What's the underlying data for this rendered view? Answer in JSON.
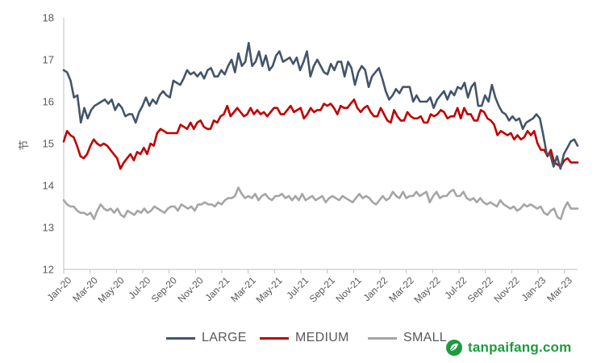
{
  "chart_data": {
    "type": "line",
    "title": "",
    "ylabel": "节",
    "xlabel": "",
    "ylim": [
      12,
      18
    ],
    "yticks": [
      12,
      13,
      14,
      15,
      16,
      17,
      18
    ],
    "grid": false,
    "legend_position": "bottom",
    "x_tick_labels": [
      "Jan-20",
      "Mar-20",
      "May-20",
      "Jul-20",
      "Sep-20",
      "Nov-20",
      "Jan-21",
      "Mar-21",
      "May-21",
      "Jul-21",
      "Sep-21",
      "Nov-21",
      "Jan-22",
      "Mar-22",
      "May-22",
      "Jul-22",
      "Sep-22",
      "Nov-22",
      "Jan-23",
      "Mar-23"
    ],
    "series": [
      {
        "name": "LARGE",
        "color": "#44546a",
        "values": [
          16.75,
          16.7,
          16.5,
          16.1,
          16.15,
          15.5,
          15.85,
          15.6,
          15.8,
          15.9,
          15.95,
          16.0,
          16.05,
          15.95,
          16.05,
          15.8,
          15.95,
          15.85,
          15.65,
          15.7,
          15.7,
          15.5,
          15.75,
          15.9,
          16.1,
          15.9,
          16.05,
          15.95,
          16.15,
          16.25,
          16.15,
          16.1,
          16.5,
          16.45,
          16.4,
          16.55,
          16.75,
          16.65,
          16.7,
          16.6,
          16.7,
          16.55,
          16.75,
          16.8,
          16.6,
          16.6,
          16.75,
          16.65,
          16.85,
          17.0,
          16.7,
          17.15,
          16.85,
          16.95,
          17.4,
          16.85,
          16.95,
          17.2,
          16.85,
          17.1,
          16.75,
          16.85,
          17.1,
          17.2,
          16.95,
          17.0,
          17.05,
          16.9,
          17.05,
          16.75,
          16.95,
          17.2,
          16.6,
          16.85,
          17.0,
          16.85,
          16.7,
          16.65,
          16.9,
          16.75,
          16.95,
          16.95,
          16.6,
          16.95,
          16.8,
          16.4,
          16.7,
          16.85,
          16.75,
          16.35,
          16.6,
          16.7,
          16.8,
          16.55,
          16.25,
          16.05,
          16.15,
          16.3,
          16.2,
          16.35,
          16.35,
          16.35,
          16.0,
          16.15,
          16.0,
          16.0,
          16.0,
          16.1,
          15.85,
          16.05,
          16.15,
          16.25,
          16.05,
          16.25,
          16.15,
          16.35,
          16.3,
          16.45,
          16.1,
          16.35,
          16.45,
          15.9,
          15.9,
          16.15,
          16.0,
          16.4,
          16.1,
          15.9,
          15.75,
          15.7,
          15.55,
          15.65,
          15.55,
          15.6,
          15.35,
          15.5,
          15.55,
          15.6,
          15.7,
          15.6,
          15.2,
          14.75,
          14.75,
          14.45,
          14.7,
          14.4,
          14.75,
          14.9,
          15.05,
          15.1,
          14.95
        ]
      },
      {
        "name": "MEDIUM",
        "color": "#c00000",
        "values": [
          15.05,
          15.3,
          15.2,
          15.15,
          14.95,
          14.7,
          14.65,
          14.75,
          14.95,
          15.1,
          15.0,
          14.95,
          15.0,
          14.95,
          14.85,
          14.75,
          14.65,
          14.4,
          14.55,
          14.65,
          14.75,
          14.6,
          14.8,
          14.75,
          14.9,
          14.75,
          15.0,
          14.95,
          15.25,
          15.35,
          15.3,
          15.25,
          15.25,
          15.25,
          15.25,
          15.45,
          15.4,
          15.35,
          15.5,
          15.35,
          15.5,
          15.55,
          15.4,
          15.35,
          15.35,
          15.55,
          15.5,
          15.65,
          15.7,
          15.9,
          15.65,
          15.75,
          15.85,
          15.75,
          15.65,
          15.7,
          15.85,
          15.7,
          15.8,
          15.7,
          15.75,
          15.65,
          15.75,
          15.85,
          15.85,
          15.7,
          15.7,
          15.8,
          15.9,
          15.75,
          15.8,
          15.85,
          15.6,
          15.7,
          15.85,
          15.75,
          15.8,
          15.8,
          15.95,
          15.9,
          15.95,
          15.85,
          15.7,
          15.9,
          15.85,
          15.85,
          15.95,
          16.05,
          15.85,
          15.75,
          15.85,
          15.9,
          15.75,
          15.65,
          15.65,
          15.85,
          15.7,
          15.55,
          15.5,
          15.8,
          15.65,
          15.55,
          15.55,
          15.75,
          15.65,
          15.6,
          15.6,
          15.65,
          15.5,
          15.5,
          15.7,
          15.65,
          15.7,
          15.8,
          15.75,
          15.6,
          15.65,
          15.65,
          15.85,
          15.6,
          15.85,
          15.7,
          15.7,
          15.55,
          15.55,
          15.8,
          15.75,
          15.6,
          15.55,
          15.45,
          15.2,
          15.3,
          15.25,
          15.2,
          15.25,
          15.1,
          15.2,
          15.1,
          15.15,
          15.3,
          15.2,
          15.3,
          15.0,
          14.85,
          14.85,
          14.7,
          14.85,
          14.55,
          14.5,
          14.45,
          14.6,
          14.65,
          14.55,
          14.55,
          14.55
        ]
      },
      {
        "name": "SMALL",
        "color": "#a5a5a5",
        "values": [
          13.65,
          13.55,
          13.5,
          13.5,
          13.4,
          13.35,
          13.35,
          13.3,
          13.35,
          13.2,
          13.4,
          13.55,
          13.45,
          13.4,
          13.45,
          13.35,
          13.45,
          13.3,
          13.25,
          13.4,
          13.35,
          13.3,
          13.4,
          13.35,
          13.45,
          13.35,
          13.4,
          13.5,
          13.45,
          13.4,
          13.35,
          13.45,
          13.5,
          13.5,
          13.4,
          13.55,
          13.5,
          13.45,
          13.5,
          13.4,
          13.55,
          13.55,
          13.6,
          13.55,
          13.55,
          13.5,
          13.6,
          13.55,
          13.65,
          13.7,
          13.7,
          13.75,
          13.95,
          13.8,
          13.7,
          13.75,
          13.7,
          13.8,
          13.65,
          13.75,
          13.8,
          13.7,
          13.65,
          13.75,
          13.75,
          13.8,
          13.7,
          13.75,
          13.65,
          13.75,
          13.65,
          13.8,
          13.65,
          13.7,
          13.75,
          13.65,
          13.7,
          13.75,
          13.6,
          13.7,
          13.75,
          13.7,
          13.65,
          13.75,
          13.7,
          13.65,
          13.6,
          13.7,
          13.8,
          13.7,
          13.75,
          13.7,
          13.6,
          13.55,
          13.65,
          13.75,
          13.65,
          13.7,
          13.85,
          13.75,
          13.7,
          13.85,
          13.7,
          13.75,
          13.75,
          13.85,
          13.75,
          13.8,
          13.85,
          13.6,
          13.75,
          13.85,
          13.7,
          13.75,
          13.75,
          13.85,
          13.9,
          13.75,
          13.75,
          13.85,
          13.7,
          13.65,
          13.7,
          13.6,
          13.7,
          13.6,
          13.55,
          13.6,
          13.55,
          13.5,
          13.65,
          13.55,
          13.5,
          13.45,
          13.5,
          13.4,
          13.45,
          13.55,
          13.5,
          13.55,
          13.5,
          13.45,
          13.5,
          13.35,
          13.3,
          13.4,
          13.45,
          13.25,
          13.2,
          13.45,
          13.6,
          13.45,
          13.45,
          13.45
        ]
      }
    ]
  },
  "watermark": {
    "text": "tanpaifang.com",
    "color": "#1d9b3d"
  }
}
